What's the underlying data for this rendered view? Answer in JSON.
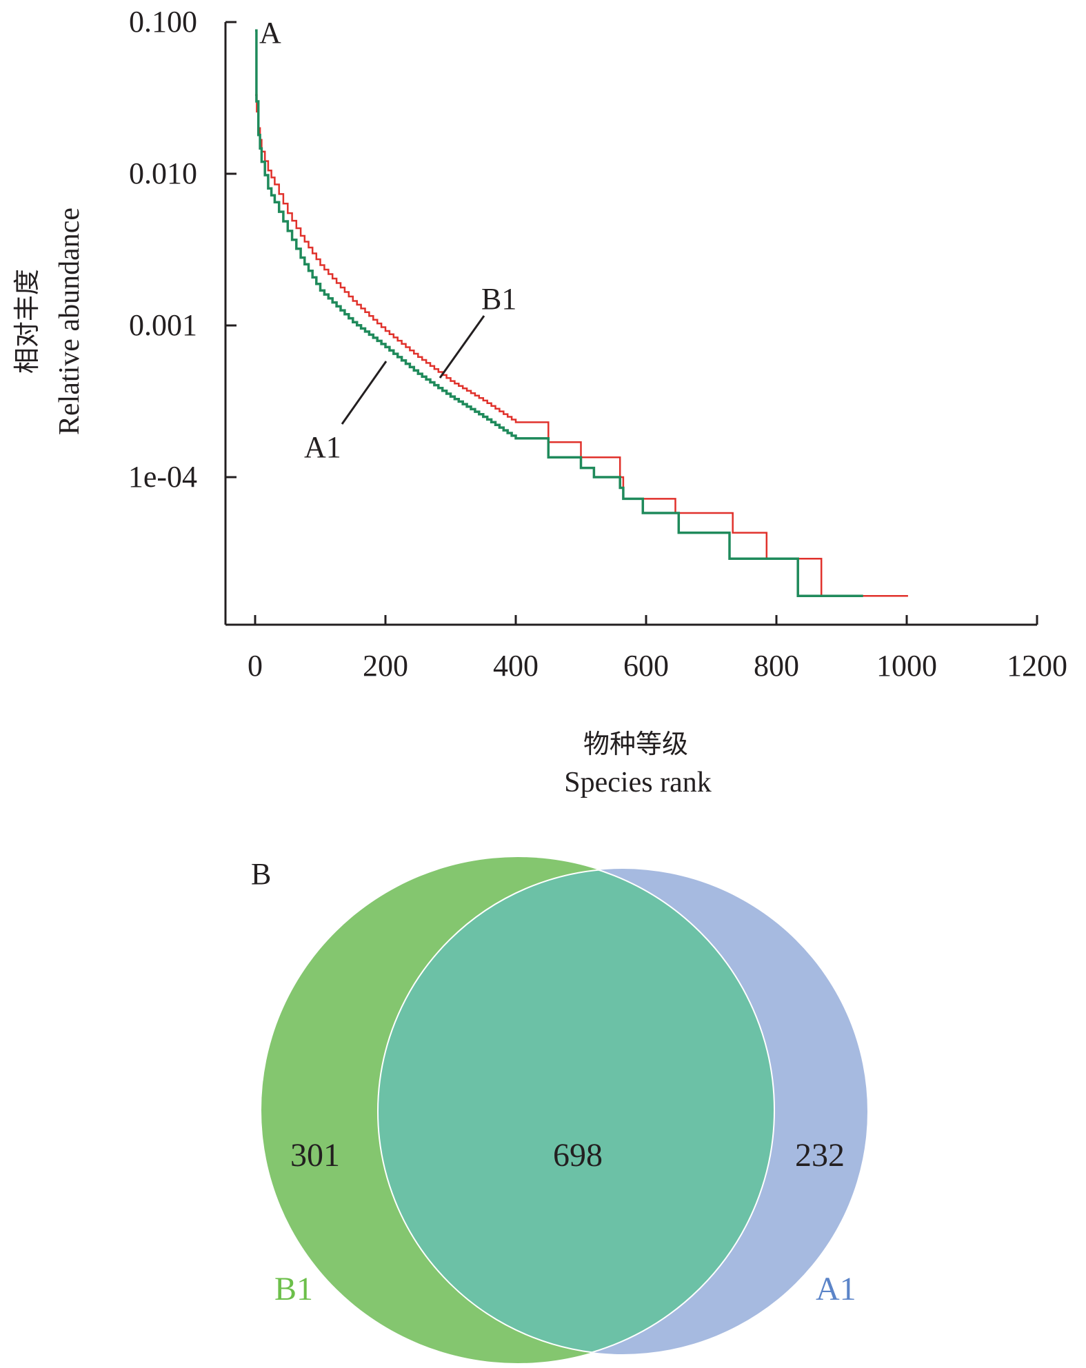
{
  "chart_data": [
    {
      "type": "line",
      "panel_label": "A",
      "title": "",
      "xlabel_cn": "物种等级",
      "xlabel": "Species rank",
      "ylabel_cn": "相对丰度",
      "ylabel": "Relative abundance",
      "xscale": "linear",
      "yscale": "log",
      "xlim": [
        0,
        1200
      ],
      "ylim": [
        1e-05,
        0.1
      ],
      "xticks": [
        0,
        200,
        400,
        600,
        800,
        1000,
        1200
      ],
      "xtick_labels": [
        "0",
        "200",
        "400",
        "600",
        "800",
        "1000",
        "1200"
      ],
      "yticks": [
        0.1,
        0.01,
        0.001,
        0.0001
      ],
      "ytick_labels": [
        "0.100",
        "0.010",
        "0.001",
        "1e-04"
      ],
      "grid": false,
      "legend": "none (inline labels with leader lines)",
      "series": [
        {
          "name": "B1",
          "color": "#e0312b",
          "step": true,
          "x": [
            0,
            5,
            10,
            20,
            30,
            50,
            70,
            100,
            150,
            200,
            250,
            300,
            350,
            400,
            450,
            500,
            560,
            565,
            645,
            733,
            785,
            869,
            1002
          ],
          "y": [
            0.033,
            0.02,
            0.014,
            0.0105,
            0.0085,
            0.0055,
            0.0039,
            0.0025,
            0.00145,
            0.00092,
            0.00062,
            0.00043,
            0.00032,
            0.00023,
            0.00017,
            0.000135,
            0.0001,
            7.2e-05,
            5.8e-05,
            4.3e-05,
            2.9e-05,
            1.65e-05,
            1.65e-05
          ]
        },
        {
          "name": "A1",
          "color": "#1f8a5b",
          "step": true,
          "x": [
            0,
            2,
            5,
            10,
            20,
            30,
            50,
            70,
            100,
            150,
            200,
            250,
            300,
            350,
            400,
            450,
            500,
            520,
            560,
            565,
            595,
            650,
            728,
            833,
            933
          ],
          "y": [
            0.088,
            0.03,
            0.018,
            0.012,
            0.008,
            0.0065,
            0.0042,
            0.0028,
            0.0017,
            0.00105,
            0.00072,
            0.00048,
            0.00034,
            0.00025,
            0.00018,
            0.000135,
            0.000115,
            0.0001,
            8.5e-05,
            7.2e-05,
            5.8e-05,
            4.3e-05,
            2.9e-05,
            1.65e-05,
            1.65e-05
          ]
        }
      ],
      "annotations": [
        {
          "text": "B1",
          "points_to_series": "B1"
        },
        {
          "text": "A1",
          "points_to_series": "A1"
        }
      ]
    },
    {
      "type": "venn",
      "panel_label": "B",
      "sets": [
        {
          "name": "B1",
          "only": 301,
          "color": "#84c66f",
          "label_color": "#6cbf4a"
        },
        {
          "name": "A1",
          "only": 232,
          "color": "#a6bae0",
          "label_color": "#5b84c8"
        }
      ],
      "intersection": 698,
      "intersection_color": "#6cc1a6"
    }
  ]
}
